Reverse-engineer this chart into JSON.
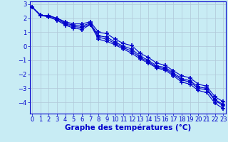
{
  "x": [
    0,
    1,
    2,
    3,
    4,
    5,
    6,
    7,
    8,
    9,
    10,
    11,
    12,
    13,
    14,
    15,
    16,
    17,
    18,
    19,
    20,
    21,
    22,
    23
  ],
  "series": [
    [
      2.8,
      2.2,
      2.1,
      1.85,
      1.5,
      1.3,
      1.2,
      1.55,
      0.5,
      0.35,
      0.1,
      -0.2,
      -0.5,
      -0.9,
      -1.2,
      -1.55,
      -1.7,
      -2.1,
      -2.55,
      -2.7,
      -3.15,
      -3.3,
      -4.05,
      -4.45
    ],
    [
      2.8,
      2.2,
      2.15,
      2.0,
      1.75,
      1.6,
      1.6,
      1.75,
      1.0,
      0.9,
      0.5,
      0.2,
      0.05,
      -0.5,
      -0.8,
      -1.2,
      -1.35,
      -1.75,
      -2.1,
      -2.25,
      -2.7,
      -2.85,
      -3.6,
      -3.95
    ],
    [
      2.8,
      2.2,
      2.2,
      2.0,
      1.65,
      1.5,
      1.45,
      1.65,
      0.75,
      0.65,
      0.3,
      0.0,
      -0.2,
      -0.7,
      -1.0,
      -1.4,
      -1.5,
      -1.9,
      -2.3,
      -2.45,
      -2.9,
      -3.0,
      -3.8,
      -4.15
    ],
    [
      2.8,
      2.25,
      2.1,
      1.9,
      1.6,
      1.4,
      1.35,
      1.55,
      0.65,
      0.5,
      0.2,
      -0.1,
      -0.35,
      -0.8,
      -1.1,
      -1.5,
      -1.6,
      -2.0,
      -2.4,
      -2.55,
      -3.0,
      -3.1,
      -3.85,
      -4.25
    ]
  ],
  "line_color": "#0000cc",
  "marker": "+",
  "markersize": 4,
  "markeredgewidth": 1.2,
  "linewidth": 0.8,
  "background_color": "#c8ecf4",
  "grid_color": "#b0c8d8",
  "xlabel": "Graphe des températures (°C)",
  "xlabel_color": "#0000cc",
  "xlabel_fontsize": 7.5,
  "tick_color": "#0000cc",
  "tick_fontsize": 6,
  "ylim": [
    -4.8,
    3.2
  ],
  "xlim": [
    -0.3,
    23.3
  ],
  "yticks": [
    3,
    2,
    1,
    0,
    -1,
    -2,
    -3,
    -4
  ],
  "xticks": [
    0,
    1,
    2,
    3,
    4,
    5,
    6,
    7,
    8,
    9,
    10,
    11,
    12,
    13,
    14,
    15,
    16,
    17,
    18,
    19,
    20,
    21,
    22,
    23
  ]
}
